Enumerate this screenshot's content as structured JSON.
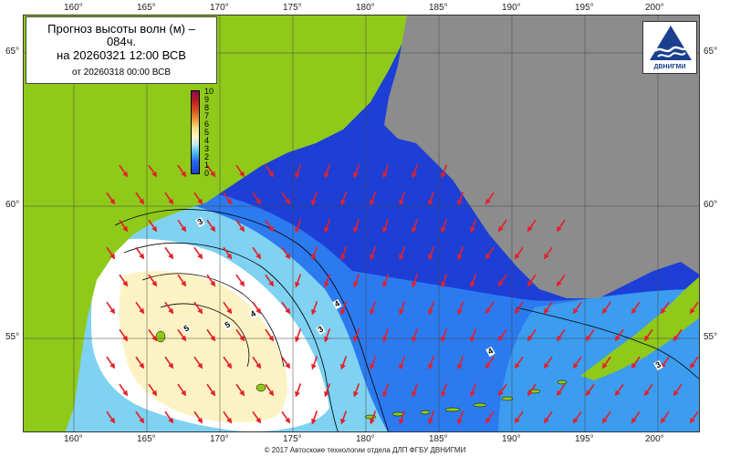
{
  "title": {
    "line1": "Прогноз высоты волн (м) –",
    "line1b": "084ч.",
    "line2": "на 20260321 12:00 ВСВ",
    "line3": "от 20260318 00:00 ВСВ"
  },
  "lon_labels": [
    "160°",
    "165°",
    "170°",
    "175°",
    "180°",
    "185°",
    "190°",
    "195°",
    "200°"
  ],
  "lat_labels": [
    "65°",
    "60°",
    "55°"
  ],
  "colorbar": {
    "labels": [
      "10",
      "9",
      "8",
      "7",
      "6",
      "5",
      "4",
      "3",
      "2",
      "1",
      "0"
    ],
    "colors": [
      "#1f3cc8",
      "#2a6cf0",
      "#52b6ef",
      "#bfe8f3",
      "#fff7c0",
      "#f6df8a",
      "#eb9a3a",
      "#d24a1e",
      "#b4182a",
      "#8a0b52"
    ]
  },
  "logo": {
    "text": "ДВНИГМИ"
  },
  "contour_labels": [
    "3",
    "4",
    "5",
    "3",
    "4",
    "5",
    "4",
    "3"
  ],
  "footer": "© 2017 Автоскоие технологии отдела ДЛП ФГБУ ДВНИГМИ",
  "colors": {
    "land": "#8fc91a",
    "grey_land": "#8c8c8c",
    "sea_deep": "#1d3fd6",
    "sea_mid": "#2c7af0",
    "sea_light": "#7fd2f2",
    "sea_pale": "#ffffff",
    "sea_yellow": "#fbf3c3",
    "arrow": "#e3202a"
  }
}
